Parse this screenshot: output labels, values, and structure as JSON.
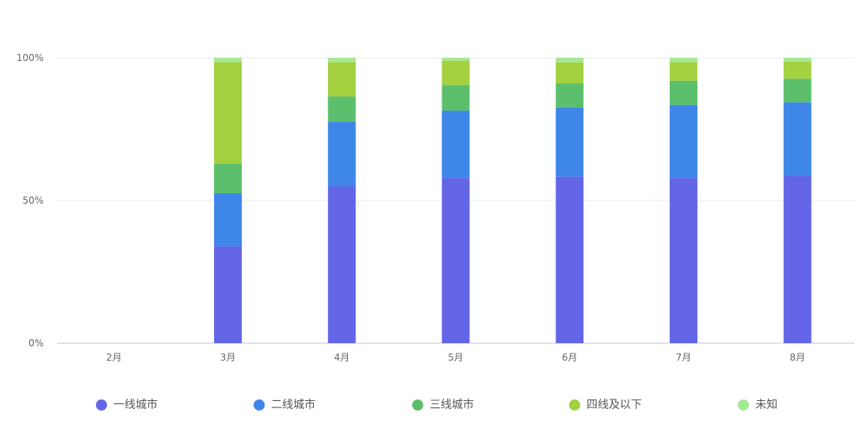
{
  "chart_data": {
    "type": "bar",
    "stacked": true,
    "normalized": true,
    "categories": [
      "2月",
      "3月",
      "4月",
      "5月",
      "6月",
      "7月",
      "8月"
    ],
    "y_ticks": [
      "0%",
      "50%",
      "100%"
    ],
    "ylim": [
      0,
      100
    ],
    "grid": true,
    "legend_position": "bottom",
    "series": [
      {
        "name": "一线城市",
        "color": "#6366E6",
        "values": [
          0,
          34,
          55,
          58,
          58.4,
          58,
          58.6
        ]
      },
      {
        "name": "二线城市",
        "color": "#3E86E8",
        "values": [
          0,
          18.5,
          22.5,
          23.5,
          24.2,
          25.5,
          25.8
        ]
      },
      {
        "name": "三线城市",
        "color": "#5CBF6C",
        "values": [
          0,
          10.5,
          9,
          9,
          8.5,
          8.5,
          8.3
        ]
      },
      {
        "name": "四线及以下",
        "color": "#A3D13F",
        "values": [
          0,
          35.5,
          12,
          8.5,
          7.3,
          6.5,
          5.9
        ]
      },
      {
        "name": "未知",
        "color": "#A5E893",
        "values": [
          0,
          1.5,
          1.5,
          1,
          1.6,
          1.5,
          1.4
        ]
      }
    ]
  }
}
